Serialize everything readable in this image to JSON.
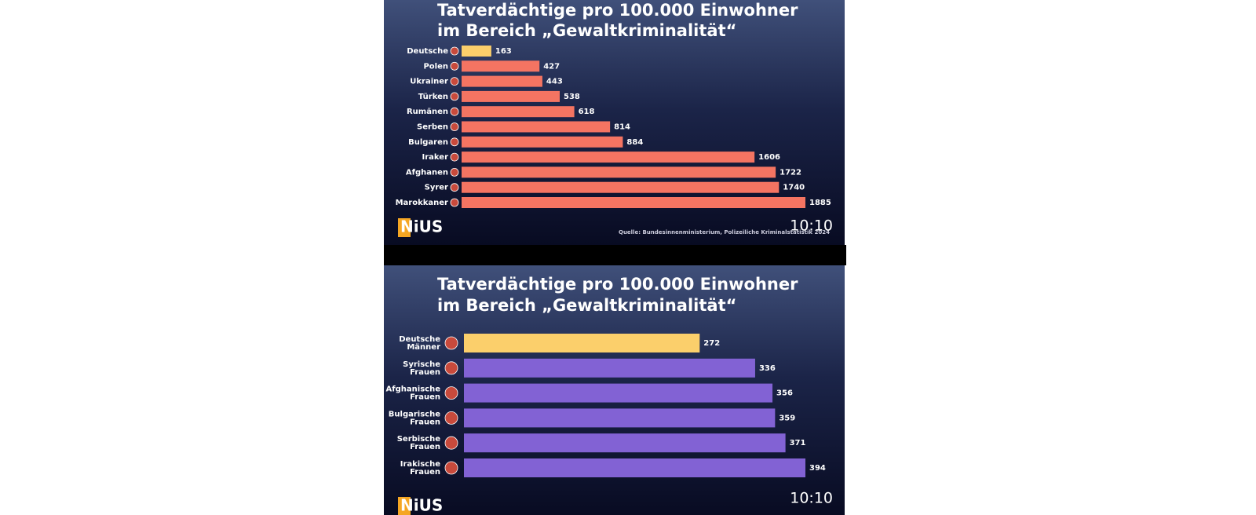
{
  "chart_data": [
    {
      "type": "bar",
      "orientation": "horizontal",
      "title": [
        "Tatverdächtige pro 100.000 Einwohner",
        "im Bereich „Gewaltkriminalität“"
      ],
      "categories": [
        "Deutsche",
        "Polen",
        "Ukrainer",
        "Türken",
        "Rumänen",
        "Serben",
        "Bulgaren",
        "Iraker",
        "Afghanen",
        "Syrer",
        "Marokkaner"
      ],
      "values": [
        163,
        427,
        443,
        538,
        618,
        814,
        884,
        1606,
        1722,
        1740,
        1885
      ],
      "colors": [
        "#fbcf6b",
        "#f47462",
        "#f47462",
        "#f47462",
        "#f47462",
        "#f47462",
        "#f47462",
        "#f47462",
        "#f47462",
        "#f47462",
        "#f47462"
      ],
      "source": "Quelle: Bundesinnenministerium, Polizeiliche Kriminalstatistik 2024",
      "logo": "NiUS",
      "timestamp": "10:10"
    },
    {
      "type": "bar",
      "orientation": "horizontal",
      "title": [
        "Tatverdächtige pro 100.000 Einwohner",
        "im Bereich „Gewaltkriminalität“"
      ],
      "categories": [
        [
          "Deutsche",
          "Männer"
        ],
        [
          "Syrische",
          "Frauen"
        ],
        [
          "Afghanische",
          "Frauen"
        ],
        [
          "Bulgarische",
          "Frauen"
        ],
        [
          "Serbische",
          "Frauen"
        ],
        [
          "Irakische",
          "Frauen"
        ]
      ],
      "values": [
        272,
        336,
        356,
        359,
        371,
        394
      ],
      "colors": [
        "#fbcf6b",
        "#8262d4",
        "#8262d4",
        "#8262d4",
        "#8262d4",
        "#8262d4"
      ],
      "logo": "NiUS",
      "timestamp": "10:10"
    }
  ]
}
